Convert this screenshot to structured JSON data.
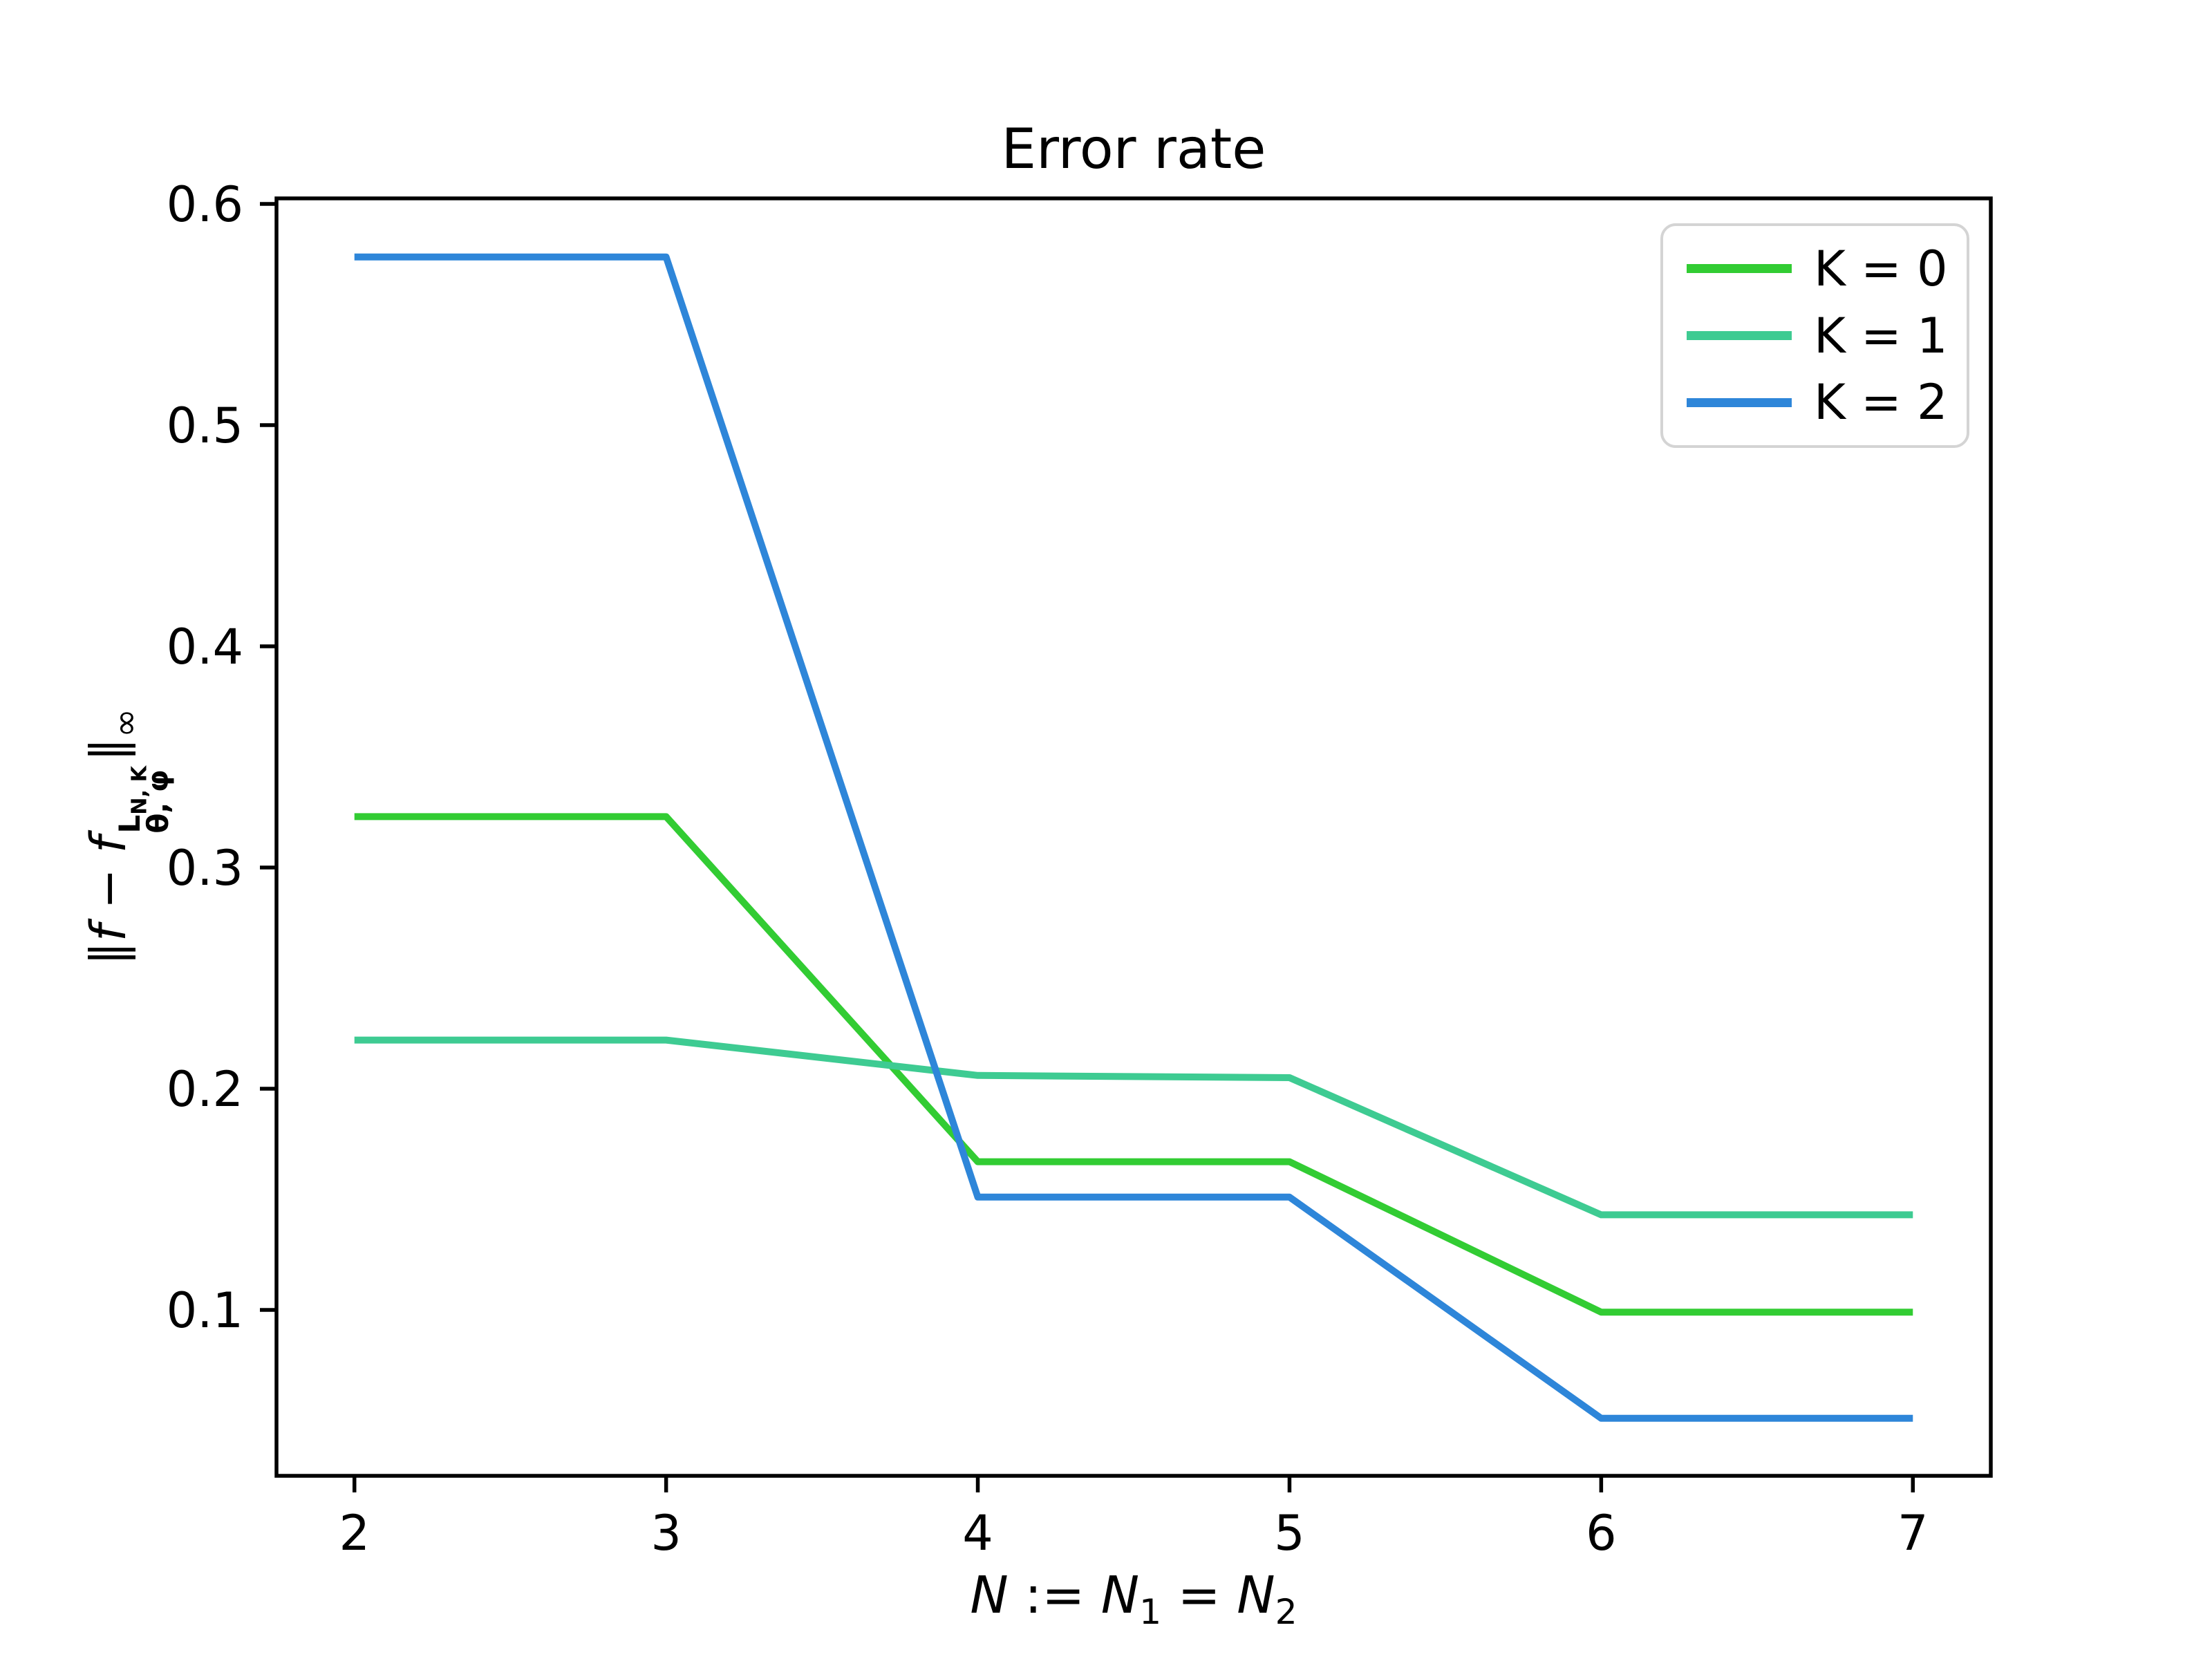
{
  "chart_data": {
    "type": "line",
    "title": "Error rate",
    "xlabel": "N := N1 = N2",
    "ylabel": "‖f − f^{L_{N,K}}_{θ,φ}‖_∞",
    "x": [
      2,
      3,
      4,
      5,
      6,
      7
    ],
    "series": [
      {
        "name": "K = 0",
        "color": "#32cc33",
        "values": [
          0.323,
          0.323,
          0.167,
          0.167,
          0.099,
          0.099
        ]
      },
      {
        "name": "K = 1",
        "color": "#3ecb92",
        "values": [
          0.222,
          0.222,
          0.206,
          0.205,
          0.143,
          0.143
        ]
      },
      {
        "name": "K = 2",
        "color": "#2e86d9",
        "values": [
          0.576,
          0.576,
          0.151,
          0.151,
          0.051,
          0.051
        ]
      }
    ],
    "xlim": [
      1.75,
      7.25
    ],
    "ylim": [
      0.025,
      0.6025
    ],
    "xticks": [
      {
        "v": 2,
        "label": "2"
      },
      {
        "v": 3,
        "label": "3"
      },
      {
        "v": 4,
        "label": "4"
      },
      {
        "v": 5,
        "label": "5"
      },
      {
        "v": 6,
        "label": "6"
      },
      {
        "v": 7,
        "label": "7"
      }
    ],
    "yticks": [
      {
        "v": 0.1,
        "label": "0.1"
      },
      {
        "v": 0.2,
        "label": "0.2"
      },
      {
        "v": 0.3,
        "label": "0.3"
      },
      {
        "v": 0.4,
        "label": "0.4"
      },
      {
        "v": 0.5,
        "label": "0.5"
      },
      {
        "v": 0.6,
        "label": "0.6"
      }
    ],
    "grid": false,
    "legend_position": "upper right"
  },
  "title": "Error rate",
  "xlabel": {
    "n1": "N",
    "assign": " := ",
    "n2": "N",
    "sub1": "1",
    "eq": " = ",
    "n3": "N",
    "sub2": "2"
  },
  "ylabel": {
    "open": "∥",
    "f1": "f",
    "minus": " − ",
    "f2": "f",
    "sup_L": "L",
    "sup_sub": "N, K",
    "sub_row": "θ, φ",
    "close": "∥",
    "inf": "∞"
  },
  "legend": {
    "entries": [
      {
        "label": "K = 0"
      },
      {
        "label": "K = 1"
      },
      {
        "label": "K = 2"
      }
    ]
  }
}
